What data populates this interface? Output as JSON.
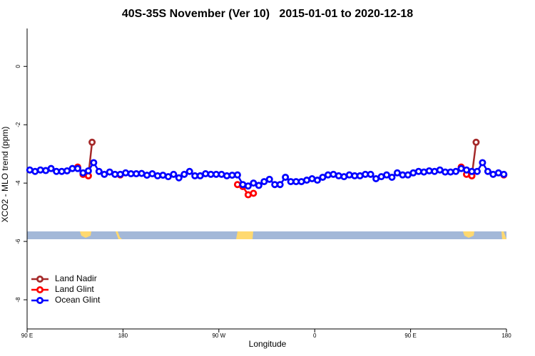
{
  "chart_data": {
    "type": "line",
    "title": "40S-35S November (Ver 10)   2015-01-01 to 2020-12-18",
    "xlabel": "Longitude",
    "ylabel": "XCO2 - MLO trend (ppm)",
    "xlim": [
      90,
      540
    ],
    "xticks": [
      {
        "value": 90,
        "label": "90 E"
      },
      180,
      {
        "value": 270,
        "label": "90 W"
      },
      {
        "value": 360,
        "label": "0"
      },
      {
        "value": 450,
        "label": "90 E"
      },
      {
        "value": 540,
        "label": "180"
      }
    ],
    "ylim": [
      -9,
      1.3
    ],
    "yticks": [
      0,
      -2,
      -4,
      -6,
      -8
    ],
    "legend": "bottomleft",
    "series": [
      {
        "name": "Land Nadir",
        "color": "#a52a2a",
        "x": [
          147.5,
          151,
          507.5,
          511.5
        ],
        "values": [
          -3.75,
          -2.6,
          -3.75,
          -2.6
        ]
      },
      {
        "name": "Land Glint",
        "color": "#ff0000",
        "x": [
          137.5,
          142.5,
          147.5,
          177.5,
          287.5,
          292.5,
          297.5,
          302.5,
          497.5,
          502.5,
          507.5,
          537.5
        ],
        "values": [
          -3.45,
          -3.7,
          -3.75,
          -3.72,
          -4.05,
          -4.12,
          -4.4,
          -4.35,
          -3.45,
          -3.7,
          -3.75,
          -3.72
        ]
      },
      {
        "name": "Ocean Glint",
        "color": "#0000ff",
        "x": [
          92.5,
          97.5,
          102.5,
          107.5,
          112.5,
          117.5,
          122.5,
          127.5,
          132.5,
          137.5,
          142.5,
          147.5,
          152.5,
          157.5,
          162.5,
          167.5,
          172.5,
          177.5,
          182.5,
          187.5,
          192.5,
          197.5,
          202.5,
          207.5,
          212.5,
          217.5,
          222.5,
          227.5,
          232.5,
          237.5,
          242.5,
          247.5,
          252.5,
          257.5,
          262.5,
          267.5,
          272.5,
          277.5,
          282.5,
          287.5,
          292.5,
          297.5,
          302.5,
          307.5,
          312.5,
          317.5,
          322.5,
          327.5,
          332.5,
          337.5,
          342.5,
          347.5,
          352.5,
          357.5,
          362.5,
          367.5,
          372.5,
          377.5,
          382.5,
          387.5,
          392.5,
          397.5,
          402.5,
          407.5,
          412.5,
          417.5,
          422.5,
          427.5,
          432.5,
          437.5,
          442.5,
          447.5,
          452.5,
          457.5,
          462.5,
          467.5,
          472.5,
          477.5,
          482.5,
          487.5,
          492.5,
          497.5,
          502.5,
          507.5,
          512.5,
          517.5,
          522.5,
          527.5,
          532.5,
          537.5
        ],
        "values": [
          -3.55,
          -3.6,
          -3.55,
          -3.57,
          -3.5,
          -3.6,
          -3.6,
          -3.58,
          -3.5,
          -3.5,
          -3.65,
          -3.58,
          -3.3,
          -3.6,
          -3.7,
          -3.62,
          -3.7,
          -3.7,
          -3.65,
          -3.68,
          -3.68,
          -3.67,
          -3.73,
          -3.68,
          -3.75,
          -3.73,
          -3.78,
          -3.7,
          -3.82,
          -3.7,
          -3.6,
          -3.75,
          -3.75,
          -3.68,
          -3.7,
          -3.7,
          -3.7,
          -3.75,
          -3.73,
          -3.72,
          -4.05,
          -4.1,
          -4.0,
          -4.08,
          -3.95,
          -3.87,
          -4.05,
          -4.05,
          -3.8,
          -3.95,
          -3.95,
          -3.95,
          -3.9,
          -3.85,
          -3.9,
          -3.8,
          -3.72,
          -3.7,
          -3.75,
          -3.78,
          -3.72,
          -3.75,
          -3.75,
          -3.7,
          -3.7,
          -3.85,
          -3.78,
          -3.72,
          -3.8,
          -3.65,
          -3.72,
          -3.72,
          -3.65,
          -3.6,
          -3.62,
          -3.58,
          -3.6,
          -3.55,
          -3.62,
          -3.62,
          -3.6,
          -3.5,
          -3.55,
          -3.6,
          -3.6,
          -3.3,
          -3.6,
          -3.7,
          -3.65,
          -3.7
        ]
      }
    ]
  }
}
